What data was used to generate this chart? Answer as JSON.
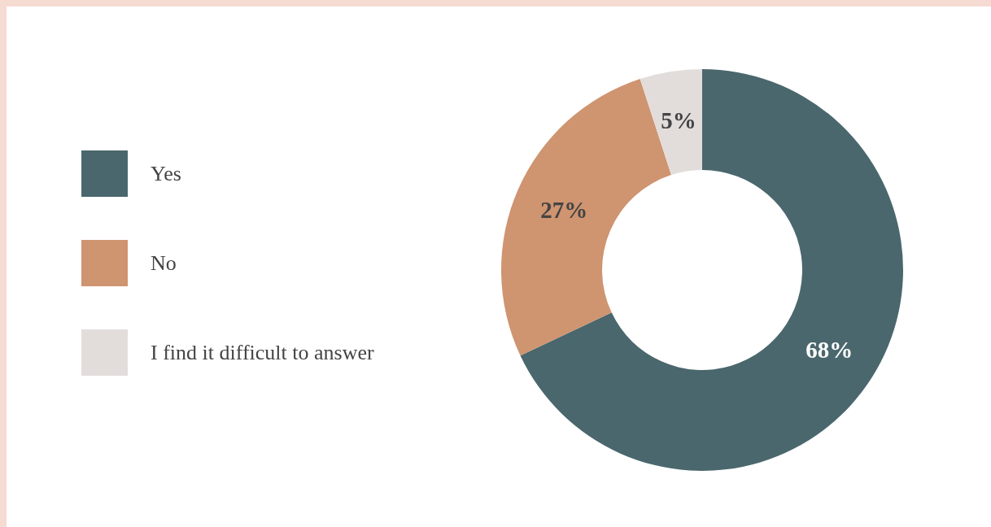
{
  "chart_data": {
    "type": "donut",
    "categories": [
      "Yes",
      "No",
      "I find it difficult to answer"
    ],
    "values": [
      68,
      27,
      5
    ],
    "colors": [
      "#4a676d",
      "#cf9470",
      "#e2dddb"
    ],
    "value_labels": [
      "68%",
      "27%",
      "5%"
    ],
    "legend": "left"
  }
}
